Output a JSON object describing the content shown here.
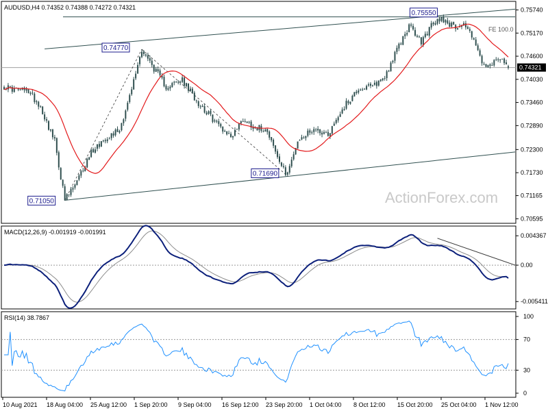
{
  "chart_data": [
    {
      "type": "candlestick",
      "pane": "price",
      "symbol": "AUDUSD",
      "timeframe": "H4",
      "header": "AUDUSD,H4  0.74352 0.74388 0.74272 0.74321",
      "ohlc": {
        "open": 0.74352,
        "high": 0.74388,
        "low": 0.74272,
        "close": 0.74321
      },
      "y_ticks": [
        "0.75740",
        "0.75170",
        "0.74600",
        "0.74030",
        "0.73460",
        "0.72890",
        "0.72300",
        "0.71730",
        "0.71165",
        "0.70595"
      ],
      "ylim": [
        0.7055,
        0.7585
      ],
      "current_price_label": "0.74321",
      "current_price": 0.74321,
      "level_labels": [
        {
          "text": "0.71050",
          "value": 0.7105,
          "bar": 30
        },
        {
          "text": "0.74770",
          "value": 0.7477,
          "bar": 68
        },
        {
          "text": "0.71690",
          "value": 0.7169,
          "bar": 139
        },
        {
          "text": "0.75550",
          "value": 0.7555,
          "bar": 216
        }
      ],
      "fe_label": "FE 100.0",
      "watermark": "ActionForex.com",
      "moving_average": "red line",
      "colors": {
        "candles": "#2f4f4f",
        "ma": "#e31a1c",
        "levels": "#1a1a8c",
        "lines": "#2f4f4f"
      }
    },
    {
      "type": "line",
      "pane": "macd",
      "header": "MACD(12,26,9) -0.001919 -0.001991",
      "macd": -0.001919,
      "signal": -0.001991,
      "y_ticks": [
        "0.004367",
        "0.00",
        "-0.005411"
      ],
      "ylim": [
        -0.0062,
        0.0052
      ],
      "colors": {
        "macd": "#0b1f7a",
        "signal": "#8c8c8c"
      }
    },
    {
      "type": "line",
      "pane": "rsi",
      "header": "RSI(14) 38.7867",
      "value": 38.7867,
      "y_ticks": [
        "100",
        "70",
        "30",
        "0"
      ],
      "ylim": [
        0,
        100
      ],
      "levels": [
        70,
        30
      ],
      "colors": {
        "rsi": "#1e90ff"
      }
    }
  ],
  "x_ticks": [
    "10 Aug 2021",
    "18 Aug 04:00",
    "25 Aug 12:00",
    "1 Sep 20:00",
    "9 Sep 04:00",
    "16 Sep 12:00",
    "23 Sep 20:00",
    "1 Oct 04:00",
    "8 Oct 12:00",
    "15 Oct 20:00",
    "25 Oct 04:00",
    "1 Nov 12:00"
  ]
}
